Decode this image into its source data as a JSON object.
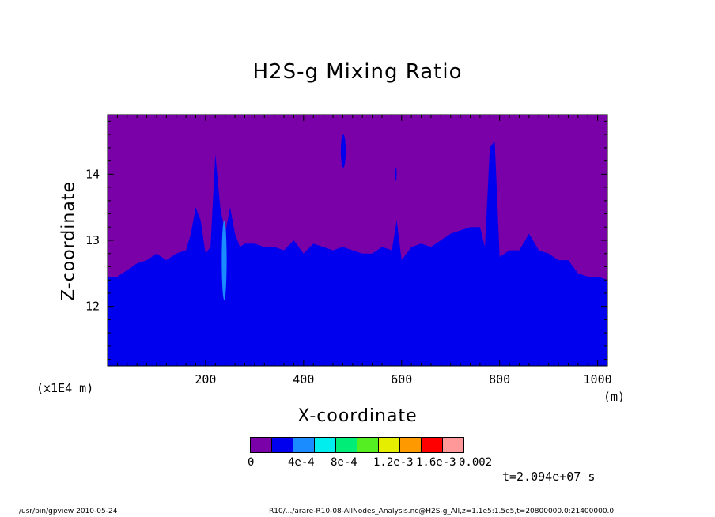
{
  "chart_data": {
    "type": "heatmap",
    "title": "H2S-g Mixing Ratio",
    "xlabel": "X-coordinate",
    "ylabel": "Z-coordinate",
    "x_unit": "(m)",
    "y_unit": "(x1E4 m)",
    "xlim": [
      0,
      1020
    ],
    "ylim": [
      11.1,
      14.9
    ],
    "x_ticks": [
      200,
      400,
      600,
      800,
      1000
    ],
    "y_ticks": [
      12,
      13,
      14
    ],
    "grid": false,
    "colorbar": {
      "colors": [
        "#7a00a8",
        "#0000ee",
        "#1a8cff",
        "#00eeee",
        "#00ee77",
        "#55ee22",
        "#e6ee00",
        "#ff9900",
        "#ff0000",
        "#ff9999"
      ],
      "labels": [
        "0",
        "4e-4",
        "8e-4",
        "1.2e-3",
        "1.6e-3",
        "0.002"
      ]
    },
    "boundary_profile": {
      "x": [
        0,
        20,
        40,
        60,
        80,
        100,
        120,
        140,
        160,
        170,
        180,
        190,
        200,
        210,
        220,
        230,
        240,
        250,
        260,
        270,
        280,
        300,
        320,
        340,
        360,
        380,
        400,
        420,
        440,
        460,
        480,
        500,
        520,
        540,
        560,
        580,
        590,
        600,
        620,
        640,
        660,
        680,
        700,
        720,
        740,
        760,
        770,
        780,
        790,
        800,
        820,
        840,
        860,
        880,
        900,
        920,
        940,
        960,
        980,
        1000,
        1020
      ],
      "z": [
        12.45,
        12.45,
        12.55,
        12.65,
        12.7,
        12.8,
        12.7,
        12.8,
        12.85,
        13.1,
        13.5,
        13.3,
        12.8,
        12.9,
        14.3,
        13.5,
        13.1,
        13.5,
        13.1,
        12.9,
        12.95,
        12.95,
        12.9,
        12.9,
        12.85,
        13.0,
        12.8,
        12.95,
        12.9,
        12.85,
        12.9,
        12.85,
        12.8,
        12.8,
        12.9,
        12.85,
        13.3,
        12.7,
        12.9,
        12.95,
        12.9,
        13.0,
        13.1,
        13.15,
        13.2,
        13.2,
        12.9,
        14.4,
        14.5,
        12.75,
        12.85,
        12.85,
        13.1,
        12.85,
        12.8,
        12.7,
        12.7,
        12.5,
        12.45,
        12.45,
        12.4
      ]
    },
    "features": [
      {
        "x_range": [
          476,
          486
        ],
        "z_range": [
          14.1,
          14.6
        ],
        "color_index": 1
      },
      {
        "x_range": [
          586,
          590
        ],
        "z_range": [
          13.9,
          14.1
        ],
        "color_index": 1
      },
      {
        "x_range": [
          233,
          243
        ],
        "z_range": [
          12.1,
          13.3
        ],
        "color_index": 2
      }
    ]
  },
  "timestamp": "t=2.094e+07 s",
  "footer": {
    "left": "/usr/bin/gpview  2010-05-24",
    "right": "R10/.../arare-R10-08-AllNodes_Analysis.nc@H2S-g_All,z=1.1e5:1.5e5,t=20800000.0:21400000.0"
  }
}
